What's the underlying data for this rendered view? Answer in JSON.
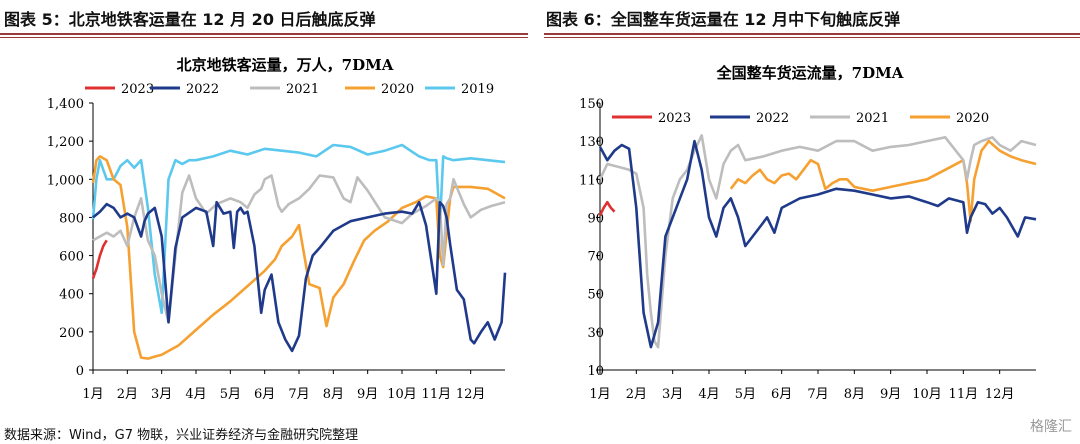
{
  "figures": [
    {
      "title": "图表 5：北京地铁客运量在 12 月 20 日后触底反弹"
    },
    {
      "title": "图表 6：全国整车货运量在 12 月中下旬触底反弹"
    }
  ],
  "footer": "数据来源：Wind，G7 物联，兴业证券经济与金融研究院整理",
  "logo": "格隆汇",
  "colors": {
    "2023": "#e03030",
    "2022": "#1f3a8a",
    "2021": "#bdbdbd",
    "2020": "#f5a030",
    "2019": "#5bc8ee",
    "rule": "#9a3b3b"
  },
  "chart_data": [
    {
      "type": "line",
      "title": "北京地铁客运量，万人，7DMA",
      "ylim": [
        0,
        1400
      ],
      "yticks": [
        "0",
        "200",
        "400",
        "600",
        "800",
        "1,000",
        "1,200",
        "1,400"
      ],
      "xticks": [
        "1月",
        "2月",
        "3月",
        "4月",
        "5月",
        "6月",
        "7月",
        "8月",
        "9月",
        "10月",
        "11月",
        "12月"
      ],
      "legend": [
        "2023",
        "2022",
        "2021",
        "2020",
        "2019"
      ],
      "series": [
        {
          "name": "2023",
          "x": [
            0,
            0.1,
            0.2,
            0.3,
            0.4
          ],
          "values": [
            480,
            530,
            600,
            650,
            680
          ]
        },
        {
          "name": "2022",
          "x": [
            0,
            0.2,
            0.4,
            0.6,
            0.8,
            1.0,
            1.2,
            1.4,
            1.5,
            1.6,
            1.8,
            2.0,
            2.2,
            2.4,
            2.6,
            3.0,
            3.3,
            3.5,
            3.6,
            3.8,
            4.0,
            4.1,
            4.2,
            4.3,
            4.4,
            4.5,
            4.7,
            4.9,
            5.0,
            5.2,
            5.4,
            5.6,
            5.8,
            6.0,
            6.2,
            6.4,
            6.6,
            7.0,
            7.5,
            8.0,
            8.5,
            9.0,
            9.3,
            9.5,
            9.7,
            10.0,
            10.1,
            10.2,
            10.3,
            10.4,
            10.6,
            10.8,
            11.0,
            11.1,
            11.3,
            11.5,
            11.7,
            11.9,
            12.0
          ],
          "values": [
            800,
            830,
            870,
            850,
            800,
            820,
            800,
            700,
            780,
            820,
            850,
            700,
            250,
            640,
            800,
            850,
            830,
            650,
            880,
            820,
            830,
            640,
            830,
            850,
            820,
            830,
            650,
            300,
            420,
            500,
            250,
            160,
            100,
            180,
            480,
            600,
            640,
            730,
            780,
            800,
            820,
            830,
            820,
            880,
            760,
            400,
            880,
            860,
            800,
            660,
            420,
            370,
            160,
            140,
            200,
            250,
            160,
            250,
            510
          ]
        },
        {
          "name": "2021",
          "x": [
            0,
            0.2,
            0.4,
            0.6,
            0.8,
            1.0,
            1.2,
            1.4,
            1.6,
            1.8,
            2.0,
            2.2,
            2.4,
            2.6,
            2.8,
            3.0,
            3.3,
            3.6,
            4.0,
            4.3,
            4.5,
            4.7,
            4.9,
            5.0,
            5.2,
            5.4,
            5.5,
            5.7,
            6.0,
            6.3,
            6.6,
            7.0,
            7.3,
            7.5,
            7.7,
            8.0,
            8.5,
            9.0,
            9.3,
            9.7,
            10.0,
            10.1,
            10.2,
            10.3,
            10.4,
            10.5,
            10.8,
            11.0,
            11.3,
            11.6,
            12.0
          ],
          "values": [
            680,
            700,
            720,
            700,
            730,
            650,
            800,
            900,
            680,
            600,
            400,
            250,
            600,
            930,
            1020,
            900,
            820,
            870,
            900,
            880,
            850,
            920,
            950,
            1000,
            1020,
            860,
            830,
            870,
            900,
            950,
            1020,
            1010,
            900,
            880,
            1010,
            940,
            800,
            770,
            820,
            860,
            900,
            880,
            550,
            870,
            900,
            1000,
            870,
            800,
            840,
            860,
            880
          ]
        },
        {
          "name": "2020",
          "x": [
            0,
            0.1,
            0.2,
            0.3,
            0.4,
            0.5,
            0.6,
            0.8,
            1.0,
            1.2,
            1.4,
            1.6,
            1.8,
            2.0,
            2.5,
            3.0,
            3.5,
            4.0,
            4.5,
            5.0,
            5.3,
            5.5,
            5.8,
            6.0,
            6.3,
            6.6,
            6.8,
            7.0,
            7.3,
            7.6,
            7.9,
            8.2,
            8.6,
            9.0,
            9.4,
            9.7,
            10.0,
            10.1,
            10.2,
            10.4,
            10.5,
            11.0,
            11.5,
            12.0
          ],
          "values": [
            980,
            1100,
            1120,
            1110,
            1100,
            1050,
            1000,
            970,
            750,
            200,
            65,
            60,
            70,
            80,
            130,
            210,
            290,
            360,
            440,
            520,
            580,
            650,
            700,
            760,
            450,
            430,
            230,
            380,
            450,
            570,
            680,
            730,
            780,
            850,
            880,
            910,
            900,
            600,
            540,
            900,
            960,
            960,
            950,
            900
          ]
        },
        {
          "name": "2019",
          "x": [
            0,
            0.1,
            0.2,
            0.3,
            0.4,
            0.6,
            0.8,
            1.0,
            1.2,
            1.4,
            1.6,
            1.8,
            2.0,
            2.2,
            2.4,
            2.6,
            2.8,
            3.0,
            3.5,
            4.0,
            4.5,
            5.0,
            5.5,
            6.0,
            6.5,
            7.0,
            7.5,
            8.0,
            8.5,
            9.0,
            9.5,
            9.8,
            10.0,
            10.1,
            10.2,
            10.3,
            10.5,
            11.0,
            11.5,
            12.0
          ],
          "values": [
            790,
            1000,
            1100,
            1050,
            1000,
            1000,
            1070,
            1100,
            1060,
            1100,
            850,
            500,
            300,
            1000,
            1100,
            1080,
            1100,
            1100,
            1120,
            1150,
            1130,
            1160,
            1150,
            1140,
            1120,
            1180,
            1170,
            1130,
            1150,
            1180,
            1120,
            1100,
            1100,
            750,
            1120,
            1110,
            1100,
            1110,
            1100,
            1090
          ]
        }
      ]
    },
    {
      "type": "line",
      "title": "全国整车货运流量，7DMA",
      "ylim": [
        10,
        150
      ],
      "yticks": [
        "10",
        "30",
        "50",
        "70",
        "90",
        "110",
        "130",
        "150"
      ],
      "xticks": [
        "1月",
        "2月",
        "3月",
        "4月",
        "5月",
        "6月",
        "7月",
        "8月",
        "9月",
        "10月",
        "11月",
        "12月"
      ],
      "legend": [
        "2023",
        "2022",
        "2021",
        "2020"
      ],
      "series": [
        {
          "name": "2023",
          "x": [
            0,
            0.1,
            0.2,
            0.3,
            0.4
          ],
          "values": [
            91,
            95,
            98,
            95,
            93
          ]
        },
        {
          "name": "2022",
          "x": [
            0,
            0.2,
            0.4,
            0.6,
            0.8,
            1.0,
            1.2,
            1.4,
            1.6,
            1.8,
            2.0,
            2.2,
            2.4,
            2.6,
            2.8,
            3.0,
            3.2,
            3.4,
            3.6,
            3.8,
            4.0,
            4.2,
            4.4,
            4.6,
            4.8,
            5.0,
            5.5,
            6.0,
            6.5,
            7.0,
            7.5,
            8.0,
            8.5,
            9.0,
            9.3,
            9.6,
            10.0,
            10.1,
            10.2,
            10.4,
            10.6,
            10.8,
            11.0,
            11.2,
            11.5,
            11.7,
            12.0
          ],
          "values": [
            127,
            120,
            125,
            128,
            126,
            95,
            40,
            22,
            35,
            80,
            90,
            100,
            110,
            130,
            115,
            90,
            80,
            95,
            100,
            90,
            75,
            80,
            85,
            90,
            82,
            95,
            100,
            102,
            105,
            104,
            102,
            100,
            101,
            98,
            96,
            100,
            98,
            82,
            90,
            98,
            97,
            92,
            95,
            90,
            80,
            90,
            89
          ]
        },
        {
          "name": "2021",
          "x": [
            0,
            0.2,
            0.4,
            0.6,
            0.8,
            1.0,
            1.2,
            1.3,
            1.4,
            1.5,
            1.6,
            1.8,
            2.0,
            2.2,
            2.4,
            2.6,
            2.8,
            3.0,
            3.2,
            3.4,
            3.6,
            3.8,
            4.0,
            4.5,
            5.0,
            5.5,
            6.0,
            6.5,
            7.0,
            7.5,
            8.0,
            8.5,
            9.0,
            9.5,
            10.0,
            10.1,
            10.2,
            10.3,
            10.5,
            10.8,
            11.0,
            11.3,
            11.6,
            12.0
          ],
          "values": [
            110,
            118,
            117,
            116,
            115,
            113,
            95,
            60,
            40,
            25,
            22,
            70,
            100,
            110,
            115,
            125,
            133,
            110,
            100,
            118,
            125,
            128,
            120,
            122,
            125,
            127,
            125,
            130,
            130,
            125,
            127,
            128,
            130,
            132,
            120,
            110,
            120,
            128,
            130,
            132,
            128,
            125,
            130,
            128
          ]
        },
        {
          "name": "2020",
          "x": [
            3.6,
            3.8,
            4.0,
            4.2,
            4.4,
            4.6,
            4.8,
            5.0,
            5.2,
            5.4,
            5.6,
            5.8,
            6.0,
            6.2,
            6.4,
            6.6,
            6.8,
            7.0,
            7.5,
            8.0,
            8.5,
            9.0,
            9.5,
            10.0,
            10.1,
            10.2,
            10.3,
            10.5,
            10.7,
            11.0,
            11.3,
            11.6,
            12.0
          ],
          "values": [
            105,
            110,
            108,
            112,
            115,
            110,
            108,
            112,
            113,
            110,
            115,
            120,
            118,
            105,
            108,
            110,
            110,
            106,
            104,
            106,
            108,
            110,
            115,
            120,
            108,
            88,
            110,
            125,
            130,
            125,
            122,
            120,
            118
          ]
        }
      ]
    }
  ]
}
